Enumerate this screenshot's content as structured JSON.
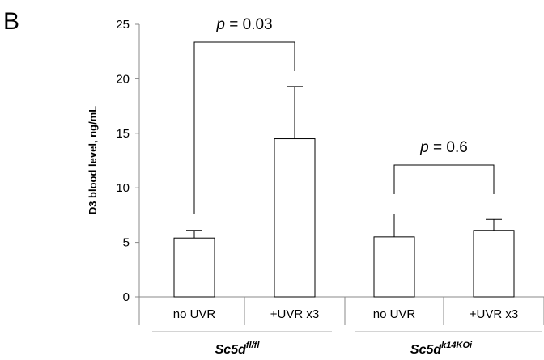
{
  "panel_label": "B",
  "chart_data": {
    "type": "bar",
    "ylabel": "D3 blood level, ng/mL",
    "ylim": [
      0,
      25
    ],
    "yticks": [
      0,
      5,
      10,
      15,
      20,
      25
    ],
    "grid": false,
    "legend": "none",
    "categories": [
      "no UVR",
      "+UVR x3",
      "no UVR",
      "+UVR x3"
    ],
    "groups": [
      {
        "name": "Sc5d",
        "superscript": "fl/fl",
        "categories": [
          0,
          1
        ]
      },
      {
        "name": "Sc5d",
        "superscript": "k14KOi",
        "categories": [
          2,
          3
        ]
      }
    ],
    "values": [
      5.4,
      14.5,
      5.5,
      6.1
    ],
    "error_upper": [
      0.7,
      4.8,
      2.1,
      1.0
    ],
    "comparisons": [
      {
        "between": [
          0,
          1
        ],
        "p_text": "p",
        "value_text": "= 0.03"
      },
      {
        "between": [
          2,
          3
        ],
        "p_text": "p",
        "value_text": "= 0.6"
      }
    ],
    "bar_fill": "#ffffff",
    "bar_stroke": "#000000"
  }
}
